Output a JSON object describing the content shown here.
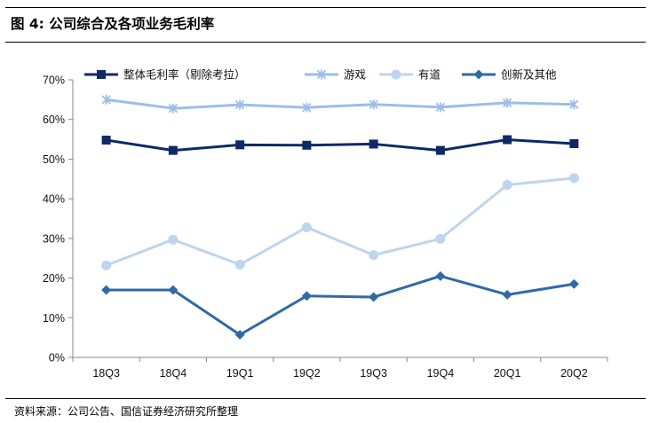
{
  "figure": {
    "label": "图 4:",
    "title": "公司综合及各项业务毛利率"
  },
  "source": "资料来源：公司公告、国信证券经济研究所整理",
  "chart_data": {
    "type": "line",
    "categories": [
      "18Q3",
      "18Q4",
      "19Q1",
      "19Q2",
      "19Q3",
      "19Q4",
      "20Q1",
      "20Q2"
    ],
    "ylim": [
      0,
      70
    ],
    "yticks": [
      0,
      10,
      20,
      30,
      40,
      50,
      60,
      70
    ],
    "ytick_labels": [
      "0%",
      "10%",
      "20%",
      "30%",
      "40%",
      "50%",
      "60%",
      "70%"
    ],
    "legend_position": "top",
    "grid": false,
    "series": [
      {
        "name": "整体毛利率（剔除考拉）",
        "color": "#0d2a66",
        "marker": "square",
        "values": [
          54.8,
          52.2,
          53.6,
          53.5,
          53.8,
          52.2,
          54.9,
          53.9
        ]
      },
      {
        "name": "游戏",
        "color": "#9dbde6",
        "marker": "asterisk",
        "values": [
          65.0,
          62.8,
          63.7,
          63.0,
          63.8,
          63.1,
          64.2,
          63.8
        ]
      },
      {
        "name": "有道",
        "color": "#bdd5ee",
        "marker": "circle",
        "values": [
          23.2,
          29.7,
          23.4,
          32.8,
          25.8,
          29.9,
          43.5,
          45.2
        ]
      },
      {
        "name": "创新及其他",
        "color": "#2f6aa8",
        "marker": "diamond",
        "values": [
          17.0,
          17.0,
          5.7,
          15.5,
          15.2,
          20.5,
          15.8,
          18.5
        ]
      }
    ]
  }
}
